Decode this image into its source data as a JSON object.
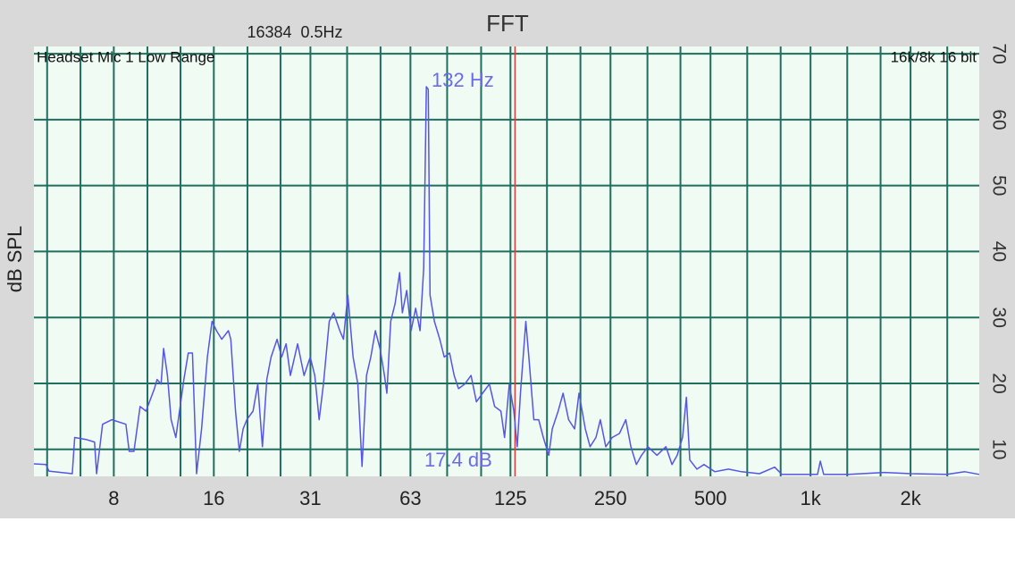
{
  "chart_data": {
    "type": "line",
    "title": "FFT",
    "subtitle": "16384  0.5Hz",
    "input_label": "Headset Mic 1 Low Range",
    "format_label": "16k/8k 16 bit",
    "ylabel": "dB SPL",
    "annotations": [
      "132 Hz",
      "17.4 dB"
    ],
    "color": "#5555e6",
    "xscale": "log",
    "grid": true,
    "cursor": {
      "x": 129,
      "color": "#e03a3a"
    },
    "xlim": [
      4.6,
      3220
    ],
    "ylim": [
      5.9,
      71.1
    ],
    "xticks": [
      8,
      16,
      {
        "value": 31.25,
        "label": "31"
      },
      {
        "value": 62.5,
        "label": "63"
      },
      125,
      250,
      500,
      {
        "value": 1000,
        "label": "1k"
      },
      {
        "value": 2000,
        "label": "2k"
      }
    ],
    "xminor": [
      5.04,
      6.35,
      10.1,
      12.7,
      20.2,
      25.4,
      40.3,
      50.8,
      80.6,
      102,
      161,
      203,
      323,
      406,
      645,
      813,
      1290,
      1625,
      2580
    ],
    "yticks": [
      10,
      20,
      30,
      40,
      50,
      60,
      70
    ],
    "x": [
      4.6,
      5.0,
      5.1,
      6.0,
      6.1,
      6.6,
      7.0,
      7.1,
      7.4,
      7.9,
      8.7,
      8.9,
      9.2,
      9.6,
      10.0,
      10.6,
      10.8,
      11.1,
      11.3,
      11.6,
      11.9,
      12.3,
      13.0,
      13.4,
      13.8,
      14.2,
      14.7,
      15.3,
      15.8,
      16.3,
      16.9,
      17.7,
      18.0,
      18.6,
      19.1,
      19.6,
      20.1,
      21.0,
      21.7,
      22.4,
      23.1,
      23.8,
      24.8,
      25.6,
      26.4,
      27.2,
      28.6,
      29.9,
      31.2,
      32.2,
      33.2,
      34.2,
      35.6,
      36.7,
      38.3,
      39.3,
      40.5,
      42.0,
      43.4,
      44.7,
      46.1,
      47.5,
      49.0,
      50.6,
      52.2,
      53.1,
      54.5,
      56.2,
      58.0,
      59.1,
      60.9,
      62.8,
      64.8,
      66.8,
      68.5,
      69.8,
      70.7,
      71.6,
      73.8,
      76.6,
      79.0,
      82.0,
      84.6,
      87.2,
      91.1,
      95.1,
      98.7,
      103,
      108,
      112,
      117,
      120,
      124,
      128,
      131,
      134,
      139,
      142,
      147,
      152,
      157,
      163,
      167,
      174,
      180,
      187,
      195,
      201,
      210,
      217,
      226,
      233,
      242,
      253,
      266,
      278,
      288,
      299,
      310,
      324,
      345,
      367,
      383,
      397,
      412,
      423,
      433,
      455,
      478,
      515,
      566,
      620,
      702,
      780,
      820,
      957,
      1050,
      1070,
      1096,
      1303,
      1670,
      2010,
      2574,
      2914,
      3218
    ],
    "values": [
      7.8,
      7.7,
      6.7,
      6.3,
      11.8,
      11.5,
      11.1,
      6.3,
      13.8,
      14.5,
      13.8,
      9.7,
      9.7,
      16.5,
      15.8,
      19.2,
      20.6,
      19.9,
      25.3,
      21.2,
      14.5,
      11.8,
      20.6,
      24.6,
      24.6,
      6.3,
      13.1,
      24.0,
      29.4,
      28.0,
      26.7,
      28.0,
      26.7,
      15.8,
      9.7,
      13.1,
      14.5,
      15.8,
      19.9,
      10.4,
      20.6,
      24.0,
      26.7,
      24.0,
      26.0,
      21.2,
      26.0,
      21.2,
      24.0,
      21.2,
      14.5,
      19.9,
      29.4,
      30.7,
      28.0,
      26.7,
      33.4,
      24.0,
      19.9,
      7.4,
      21.2,
      24.0,
      28.0,
      25.3,
      21.2,
      18.5,
      29.4,
      32.1,
      36.8,
      30.7,
      34.1,
      28.0,
      31.4,
      28.0,
      37.5,
      65.0,
      64.6,
      33.4,
      29.4,
      26.7,
      24.0,
      24.6,
      21.2,
      19.2,
      19.9,
      21.2,
      17.2,
      18.5,
      19.9,
      16.5,
      15.8,
      11.8,
      19.9,
      15.8,
      10.4,
      18.5,
      29.4,
      24.0,
      14.5,
      14.5,
      11.8,
      9.1,
      13.1,
      15.8,
      18.5,
      14.5,
      13.1,
      18.5,
      13.1,
      10.4,
      11.8,
      14.5,
      10.4,
      11.8,
      12.4,
      14.5,
      10.4,
      7.7,
      9.1,
      10.4,
      9.1,
      10.4,
      7.7,
      9.1,
      11.8,
      17.9,
      8.4,
      7.0,
      7.7,
      6.6,
      7.0,
      6.6,
      6.3,
      7.3,
      6.2,
      6.2,
      6.2,
      8.2,
      6.2,
      6.2,
      6.5,
      6.3,
      6.2,
      6.6,
      6.2
    ]
  }
}
